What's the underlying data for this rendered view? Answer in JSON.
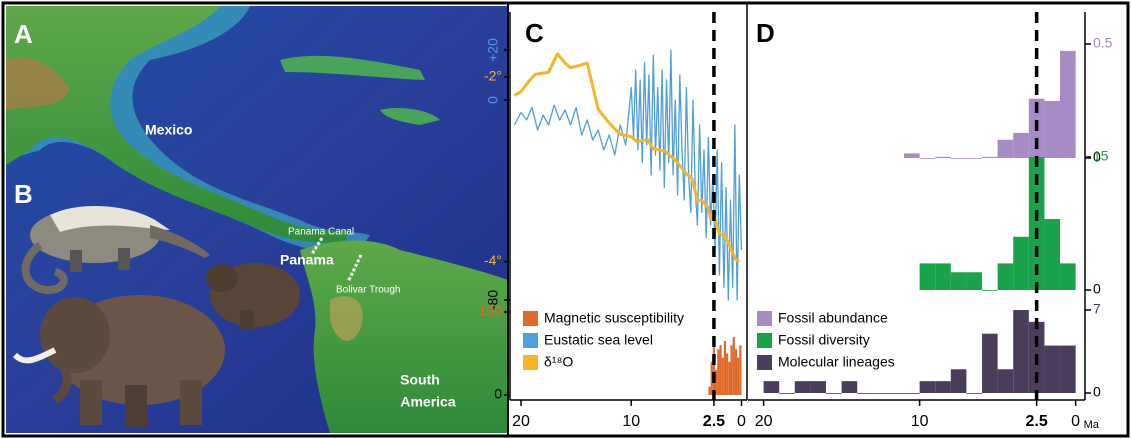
{
  "map": {
    "panel_labels": [
      "A",
      "B"
    ],
    "labels": [
      "Mexico",
      "Panama Canal",
      "Panama",
      "Bolivar Trough",
      [
        "South",
        "America"
      ]
    ]
  },
  "chart_data": [
    {
      "type": "line",
      "panel": "C",
      "xlim": [
        21,
        -0.5
      ],
      "xticks": [
        20,
        10,
        2.5,
        0
      ],
      "vline": 2.5,
      "series": [
        {
          "name": "Eustatic sea level",
          "color": "#4f9fd8",
          "type": "line",
          "ylim": [
            -80,
            20
          ],
          "yticks": [
            {
              "value": 20,
              "label": "+20"
            },
            0,
            -80
          ],
          "x": [
            20.6,
            20,
            19.5,
            19,
            18.5,
            18,
            17.5,
            17,
            16.5,
            16,
            15.5,
            15,
            14.5,
            14,
            13.5,
            13,
            12.5,
            12,
            11.5,
            11,
            10.5,
            10,
            9.8,
            9.6,
            9.4,
            9.2,
            9,
            8.8,
            8.6,
            8.4,
            8.2,
            8,
            7.8,
            7.6,
            7.4,
            7.2,
            7,
            6.8,
            6.6,
            6.4,
            6.2,
            6,
            5.8,
            5.6,
            5.4,
            5.2,
            5,
            4.8,
            4.6,
            4.4,
            4.2,
            4,
            3.8,
            3.6,
            3.4,
            3.2,
            3,
            2.8,
            2.6,
            2.4,
            2.2,
            2,
            1.8,
            1.6,
            1.4,
            1.2,
            1,
            0.8,
            0.6,
            0.4,
            0.2,
            0
          ],
          "values": [
            -10,
            -5,
            -8,
            -3,
            -12,
            -6,
            -10,
            -2,
            -8,
            -4,
            -10,
            -3,
            -14,
            -8,
            -16,
            -12,
            -20,
            -14,
            -22,
            -10,
            -18,
            5,
            -15,
            12,
            -20,
            8,
            -25,
            15,
            -18,
            10,
            -30,
            18,
            -22,
            5,
            -28,
            12,
            -35,
            8,
            -25,
            20,
            -30,
            0,
            -38,
            10,
            -20,
            -40,
            5,
            -30,
            -45,
            0,
            -35,
            -50,
            -10,
            -45,
            -20,
            -55,
            -15,
            -50,
            -30,
            -60,
            -20,
            -70,
            -25,
            -75,
            -35,
            -80,
            -40,
            -75,
            -10,
            -80,
            -30,
            -60
          ]
        },
        {
          "name": "δ¹⁸O",
          "color": "#f4b52b",
          "type": "line",
          "ylim": [
            -4.2,
            -1.6
          ],
          "yticks": [
            {
              "value": -2,
              "label": "-2°"
            },
            {
              "value": -4,
              "label": "-4°"
            }
          ],
          "x": [
            20.6,
            20,
            19.3,
            18.7,
            17.5,
            16.7,
            16,
            15.5,
            14.8,
            14,
            13.5,
            13,
            12,
            11,
            10,
            9.5,
            8.5,
            8,
            7,
            6,
            5,
            4.5,
            4,
            3.5,
            3,
            2.8,
            2.5,
            2,
            1.5,
            1,
            0.5,
            0.2
          ],
          "values": [
            -2.2,
            -2.16,
            -2.05,
            -1.97,
            -1.95,
            -1.75,
            -1.85,
            -1.9,
            -1.88,
            -1.85,
            -2.1,
            -2.35,
            -2.5,
            -2.62,
            -2.65,
            -2.7,
            -2.68,
            -2.78,
            -2.8,
            -2.9,
            -3.05,
            -3.1,
            -3.33,
            -3.35,
            -3.42,
            -3.54,
            -3.5,
            -3.7,
            -3.72,
            -3.85,
            -3.98,
            -4.0
          ]
        },
        {
          "name": "Magnetic susceptibility",
          "color": "#e06a2b",
          "type": "histogram",
          "ylim": [
            0,
            100
          ],
          "yticks": [
            100,
            0
          ],
          "bins": [
            3.0,
            2.8,
            2.6,
            2.4,
            2.2,
            2.0,
            1.8,
            1.6,
            1.4,
            1.2,
            1.0,
            0.8,
            0.6,
            0.4,
            0.2,
            0
          ],
          "values": [
            10,
            40,
            70,
            30,
            55,
            60,
            45,
            65,
            50,
            40,
            60,
            70,
            55,
            45,
            60
          ]
        }
      ]
    },
    {
      "type": "histogram",
      "panel": "D",
      "xlim": [
        21,
        -0.6
      ],
      "xticks": [
        20,
        10,
        2.5,
        0
      ],
      "xlabel": "Ma",
      "vline": 2.5,
      "series": [
        {
          "name": "Fossil abundance",
          "color": "#a78bc4",
          "ylim": [
            0,
            0.5
          ],
          "yticks": [
            0.5,
            0
          ],
          "bins": [
            11,
            10,
            9,
            8,
            7,
            6,
            5,
            4,
            3,
            2,
            1,
            0
          ],
          "values": [
            0.02,
            0,
            0.005,
            0,
            0,
            0.005,
            0.08,
            0.11,
            0.26,
            0.25,
            0.47
          ]
        },
        {
          "name": "Fossil diversity",
          "color": "#1aa34a",
          "ylim": [
            0,
            15
          ],
          "yticks": [
            15,
            0
          ],
          "bins": [
            10,
            9,
            8,
            7,
            6,
            5,
            4,
            3,
            2,
            1,
            0
          ],
          "values": [
            3,
            3,
            2,
            2,
            0,
            3,
            6,
            15,
            8,
            3
          ]
        },
        {
          "name": "Molecular lineages",
          "color": "#4b3d5c",
          "ylim": [
            0,
            7
          ],
          "yticks": [
            7,
            0
          ],
          "bins": [
            20,
            19,
            18,
            17,
            16,
            15,
            14,
            13,
            12,
            11,
            10,
            9,
            8,
            7,
            6,
            5,
            4,
            3,
            2,
            1,
            0
          ],
          "values": [
            1,
            0,
            1,
            1,
            0,
            1,
            0,
            0,
            0,
            0,
            1,
            1,
            2,
            0,
            5,
            2,
            7,
            6,
            4,
            4
          ]
        }
      ]
    }
  ]
}
